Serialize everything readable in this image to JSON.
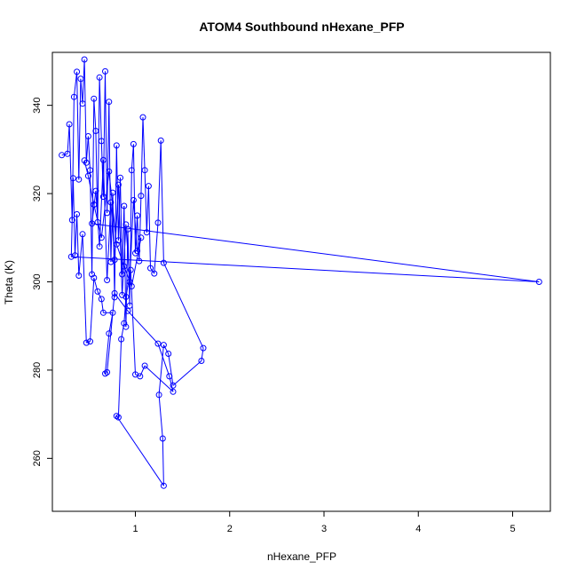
{
  "chart_data": {
    "type": "line",
    "title": "ATOM4 Southbound nHexane_PFP",
    "xlabel": "nHexane_PFP",
    "ylabel": "Theta (K)",
    "xlim": [
      0.12,
      5.4
    ],
    "ylim": [
      248,
      352
    ],
    "xticks": [
      1,
      2,
      3,
      4,
      5
    ],
    "yticks": [
      260,
      280,
      300,
      320,
      340
    ],
    "grid": false,
    "markers": "open-circle",
    "series": [
      {
        "color": "#0000ff",
        "points": [
          [
            0.22,
            328.7
          ],
          [
            0.28,
            329.0
          ],
          [
            0.3,
            335.7
          ],
          [
            0.33,
            314.0
          ],
          [
            0.35,
            341.9
          ],
          [
            0.38,
            347.6
          ],
          [
            0.4,
            323.2
          ],
          [
            0.42,
            346.0
          ],
          [
            0.44,
            340.4
          ],
          [
            0.46,
            350.4
          ],
          [
            0.48,
            327.0
          ],
          [
            0.5,
            333.0
          ],
          [
            0.52,
            325.3
          ],
          [
            0.54,
            301.7
          ],
          [
            0.56,
            341.5
          ],
          [
            0.58,
            334.2
          ],
          [
            0.6,
            313.5
          ],
          [
            0.62,
            346.3
          ],
          [
            0.64,
            331.9
          ],
          [
            0.66,
            319.3
          ],
          [
            0.68,
            347.7
          ],
          [
            0.7,
            315.6
          ],
          [
            0.72,
            340.8
          ],
          [
            0.74,
            304.5
          ],
          [
            0.76,
            320.2
          ],
          [
            0.78,
            296.5
          ],
          [
            0.8,
            330.9
          ],
          [
            0.82,
            309.4
          ],
          [
            0.84,
            323.6
          ],
          [
            0.86,
            301.7
          ],
          [
            0.88,
            317.2
          ],
          [
            0.9,
            289.8
          ],
          [
            0.92,
            311.9
          ],
          [
            0.94,
            294.6
          ],
          [
            0.96,
            325.3
          ],
          [
            0.98,
            331.2
          ],
          [
            1.0,
            306.5
          ],
          [
            1.02,
            315.0
          ],
          [
            1.04,
            304.7
          ],
          [
            1.06,
            319.5
          ],
          [
            1.08,
            337.3
          ],
          [
            1.1,
            325.3
          ],
          [
            1.12,
            311.2
          ],
          [
            1.14,
            321.7
          ],
          [
            1.16,
            303.1
          ],
          [
            1.2,
            301.9
          ],
          [
            1.24,
            313.4
          ],
          [
            1.27,
            332.0
          ],
          [
            1.3,
            304.3
          ],
          [
            1.72,
            285.0
          ],
          [
            1.7,
            282.1
          ],
          [
            1.4,
            276.5
          ],
          [
            1.35,
            283.7
          ],
          [
            1.3,
            285.7
          ],
          [
            1.25,
            274.4
          ],
          [
            1.29,
            264.5
          ],
          [
            1.3,
            253.8
          ],
          [
            0.8,
            269.6
          ],
          [
            0.82,
            269.3
          ],
          [
            0.85,
            287.0
          ],
          [
            0.88,
            290.6
          ],
          [
            0.9,
            296.6
          ],
          [
            0.95,
            302.7
          ],
          [
            1.0,
            279.0
          ],
          [
            1.05,
            278.6
          ],
          [
            1.1,
            281.0
          ],
          [
            1.4,
            275.1
          ],
          [
            1.36,
            278.6
          ],
          [
            1.24,
            286.0
          ],
          [
            0.92,
            293.4
          ],
          [
            0.78,
            297.4
          ],
          [
            0.7,
            279.5
          ],
          [
            0.68,
            279.2
          ],
          [
            0.72,
            288.3
          ],
          [
            0.76,
            293.0
          ],
          [
            0.66,
            293.0
          ],
          [
            0.64,
            296.1
          ],
          [
            0.6,
            297.8
          ],
          [
            0.56,
            300.9
          ],
          [
            0.52,
            286.5
          ],
          [
            0.48,
            286.2
          ],
          [
            0.44,
            310.8
          ],
          [
            0.4,
            301.4
          ],
          [
            0.38,
            315.3
          ],
          [
            0.36,
            306.0
          ],
          [
            0.34,
            323.5
          ],
          [
            0.32,
            305.7
          ],
          [
            5.28,
            300.0
          ],
          [
            0.54,
            313.2
          ],
          [
            0.58,
            320.6
          ],
          [
            0.62,
            308.0
          ],
          [
            0.66,
            327.6
          ],
          [
            0.7,
            300.4
          ],
          [
            0.74,
            318.0
          ],
          [
            0.78,
            305.0
          ],
          [
            0.82,
            322.0
          ],
          [
            0.86,
            297.0
          ],
          [
            0.9,
            313.0
          ],
          [
            0.94,
            300.0
          ],
          [
            0.98,
            318.5
          ],
          [
            1.02,
            307.0
          ],
          [
            1.06,
            310.0
          ],
          [
            0.96,
            299.0
          ],
          [
            0.88,
            303.5
          ],
          [
            0.8,
            308.5
          ],
          [
            0.72,
            325.0
          ],
          [
            0.64,
            310.0
          ],
          [
            0.56,
            317.5
          ],
          [
            0.5,
            324.0
          ],
          [
            0.46,
            327.5
          ]
        ]
      }
    ]
  }
}
